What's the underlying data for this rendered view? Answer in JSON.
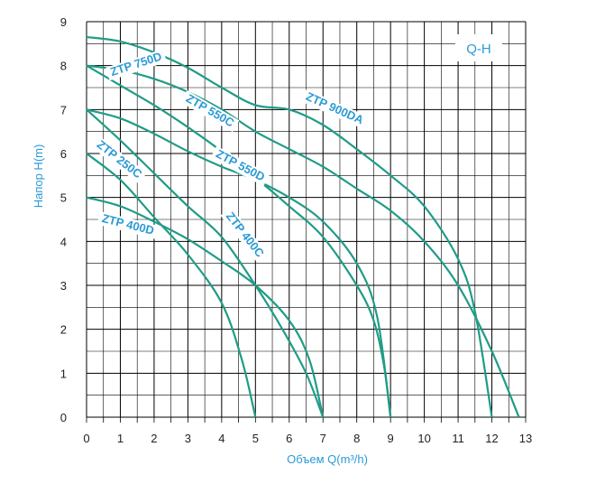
{
  "chart_data": {
    "type": "line",
    "badge": "Q-H",
    "xlabel": "Объем Q(m³/h)",
    "ylabel": "Напор H(m)",
    "xlim": [
      0,
      13
    ],
    "ylim": [
      0,
      9
    ],
    "x_ticks": [
      "0",
      "1",
      "2",
      "3",
      "4",
      "5",
      "6",
      "7",
      "8",
      "9",
      "10",
      "11",
      "12",
      "13"
    ],
    "y_ticks": [
      "0",
      "1",
      "2",
      "3",
      "4",
      "5",
      "6",
      "7",
      "8",
      "9"
    ],
    "grid": true,
    "colors": {
      "line": "#1f9c86",
      "text": "#2a9ad6",
      "grid": "#000000"
    },
    "series": [
      {
        "name": "ZTP 750D",
        "points": [
          [
            0,
            8.0
          ],
          [
            1,
            7.55
          ],
          [
            2,
            7.1
          ],
          [
            3,
            6.6
          ],
          [
            4,
            6.05
          ],
          [
            5,
            5.45
          ],
          [
            6,
            4.8
          ],
          [
            7,
            4.1
          ],
          [
            8,
            3.0
          ],
          [
            8.5,
            2.2
          ],
          [
            8.8,
            1.2
          ],
          [
            9,
            0
          ]
        ]
      },
      {
        "name": "ZTP 900DA",
        "points": [
          [
            0,
            8.65
          ],
          [
            1,
            8.55
          ],
          [
            2,
            8.3
          ],
          [
            3,
            7.95
          ],
          [
            4,
            7.5
          ],
          [
            5,
            7.1
          ],
          [
            6,
            7.0
          ],
          [
            7,
            6.65
          ],
          [
            8,
            6.1
          ],
          [
            9,
            5.5
          ],
          [
            10,
            4.8
          ],
          [
            11,
            3.6
          ],
          [
            11.5,
            2.4
          ],
          [
            12,
            0
          ]
        ]
      },
      {
        "name": "ZTP 550C",
        "points": [
          [
            0,
            8.0
          ],
          [
            1,
            7.9
          ],
          [
            2,
            7.7
          ],
          [
            3,
            7.4
          ],
          [
            4,
            7.0
          ],
          [
            5,
            6.5
          ],
          [
            6,
            6.1
          ],
          [
            7,
            5.7
          ],
          [
            8,
            5.2
          ],
          [
            9,
            4.7
          ],
          [
            10,
            4.0
          ],
          [
            11,
            3.0
          ],
          [
            12,
            1.5
          ],
          [
            12.8,
            0
          ]
        ]
      },
      {
        "name": "ZTP 550D",
        "points": [
          [
            0,
            7.0
          ],
          [
            1,
            6.8
          ],
          [
            2,
            6.45
          ],
          [
            3,
            6.05
          ],
          [
            4,
            5.7
          ],
          [
            5,
            5.4
          ],
          [
            6,
            5.0
          ],
          [
            7,
            4.45
          ],
          [
            8,
            3.5
          ],
          [
            8.6,
            2.3
          ],
          [
            9,
            0
          ]
        ]
      },
      {
        "name": "ZTP 250C",
        "points": [
          [
            0,
            6.0
          ],
          [
            1,
            5.4
          ],
          [
            2,
            4.55
          ],
          [
            3,
            3.7
          ],
          [
            4,
            2.6
          ],
          [
            4.6,
            1.3
          ],
          [
            5,
            0
          ]
        ]
      },
      {
        "name": "ZTP 400C",
        "points": [
          [
            0,
            7.0
          ],
          [
            1,
            6.3
          ],
          [
            2,
            5.55
          ],
          [
            3,
            4.8
          ],
          [
            4,
            4.1
          ],
          [
            5,
            3.0
          ],
          [
            5.8,
            2.0
          ],
          [
            6.5,
            1.0
          ],
          [
            7,
            0
          ]
        ]
      },
      {
        "name": "ZTP 400D",
        "points": [
          [
            0,
            5.0
          ],
          [
            1,
            4.8
          ],
          [
            2,
            4.45
          ],
          [
            3,
            4.05
          ],
          [
            4,
            3.55
          ],
          [
            5,
            3.0
          ],
          [
            6,
            2.2
          ],
          [
            6.6,
            1.3
          ],
          [
            7,
            0
          ]
        ]
      }
    ]
  }
}
